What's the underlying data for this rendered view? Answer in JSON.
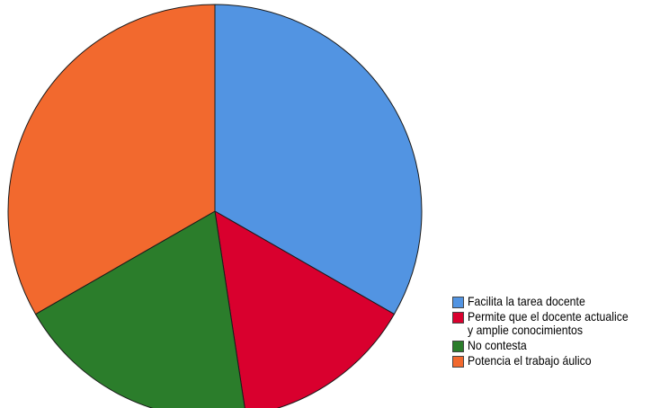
{
  "chart_data": {
    "type": "pie",
    "title": "",
    "legend_position": "bottom-right",
    "slices": [
      {
        "label": "Facilita la tarea docente",
        "value": 33.3,
        "color": "#5294e2"
      },
      {
        "label": "Permite que el docente actualice\ny amplie conocimientos",
        "value": 14.3,
        "color": "#d9002e"
      },
      {
        "label": "No contesta",
        "value": 19.1,
        "color": "#2b7d2b"
      },
      {
        "label": "Potencia el trabajo áulico",
        "value": 33.3,
        "color": "#f2692e"
      }
    ]
  }
}
